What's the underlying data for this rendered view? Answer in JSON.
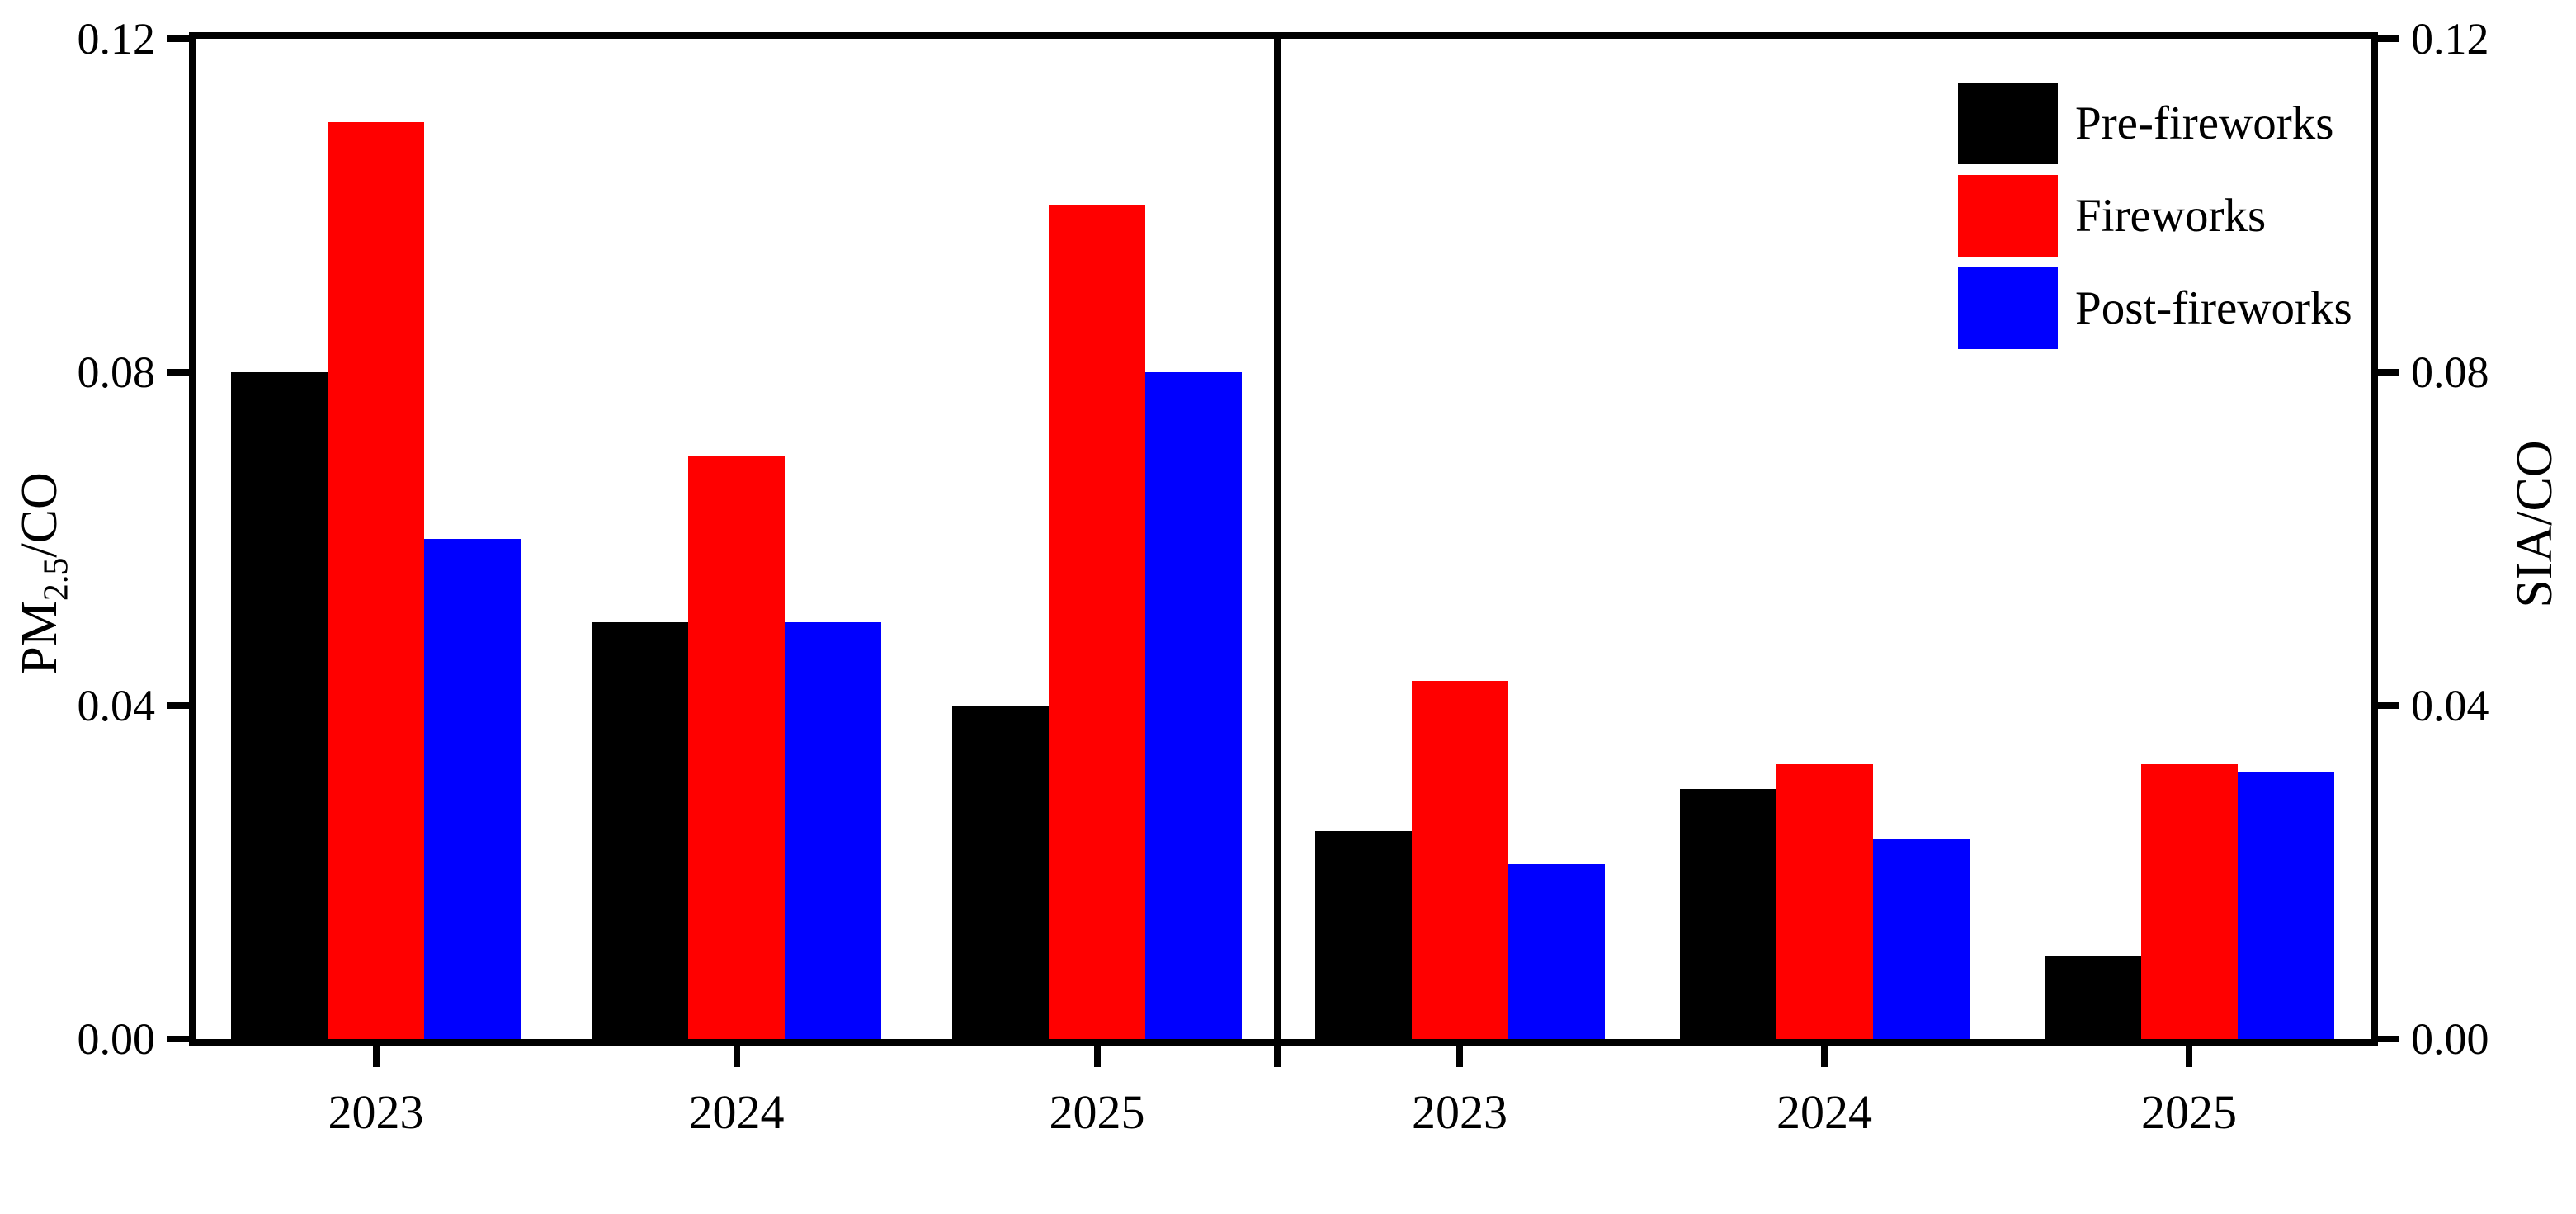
{
  "chart_data": {
    "type": "bar",
    "categories": [
      "2023",
      "2024",
      "2025"
    ],
    "ylim": [
      0,
      0.12
    ],
    "yticks": [
      0,
      0.04,
      0.08,
      0.12
    ],
    "ytick_labels": [
      "0.00",
      "0.04",
      "0.08",
      "0.12"
    ],
    "grid": "off",
    "legend_position": "top-right-inside",
    "legend": [
      {
        "name": "Pre-fireworks",
        "color": "#000000"
      },
      {
        "name": "Fireworks",
        "color": "#ff0000"
      },
      {
        "name": "Post-fireworks",
        "color": "#0000ff"
      }
    ],
    "panels": [
      {
        "id": "pm25-co",
        "axis_side": "left",
        "ylabel": {
          "base": "PM",
          "sub": "2.5",
          "rest": "/CO"
        },
        "series": [
          {
            "name": "Pre-fireworks",
            "color": "#000000",
            "values": [
              0.08,
              0.05,
              0.04
            ]
          },
          {
            "name": "Fireworks",
            "color": "#ff0000",
            "values": [
              0.11,
              0.07,
              0.1
            ]
          },
          {
            "name": "Post-fireworks",
            "color": "#0000ff",
            "values": [
              0.06,
              0.05,
              0.08
            ]
          }
        ]
      },
      {
        "id": "sia-co",
        "axis_side": "right",
        "ylabel": {
          "base": "SIA",
          "sub": "",
          "rest": "/CO"
        },
        "series": [
          {
            "name": "Pre-fireworks",
            "color": "#000000",
            "values": [
              0.025,
              0.03,
              0.01
            ]
          },
          {
            "name": "Fireworks",
            "color": "#ff0000",
            "values": [
              0.043,
              0.033,
              0.033
            ]
          },
          {
            "name": "Post-fireworks",
            "color": "#0000ff",
            "values": [
              0.021,
              0.024,
              0.032
            ]
          }
        ]
      }
    ]
  }
}
